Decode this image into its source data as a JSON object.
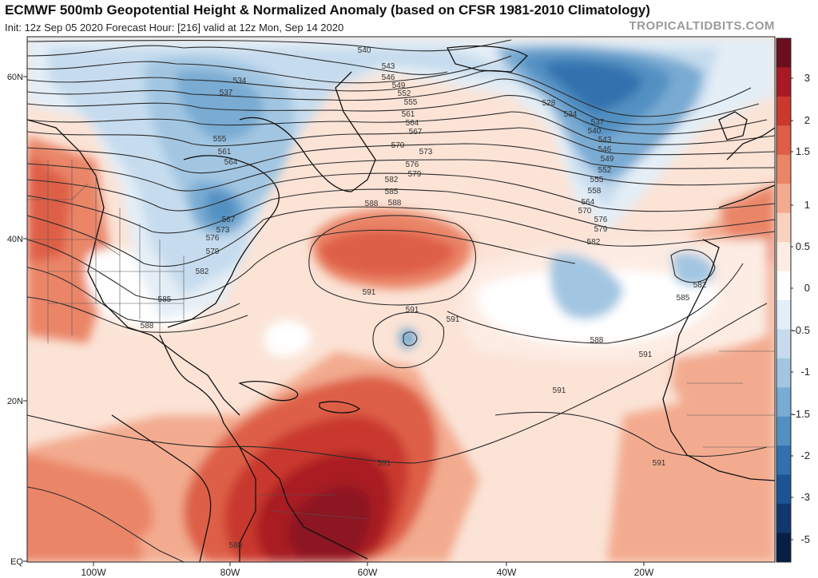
{
  "header": {
    "title": "ECMWF 500mb Geopotential Height & Normalized Anomaly (based on CFSR 1981-2010 Climatology)",
    "subtitle": "Init: 12z Sep 05 2020   Forecast Hour: [216]   valid at 12z Mon, Sep 14 2020",
    "watermark": "TROPICALTIDBITS.COM"
  },
  "map": {
    "lat_labels": [
      "60N",
      "40N",
      "20N",
      "EQ"
    ],
    "lon_labels": [
      "100W",
      "80W",
      "60W",
      "40W",
      "20W"
    ],
    "colorbar_labels": [
      "3",
      "2",
      "1.5",
      "1",
      "0.5",
      "0",
      "-0.5",
      "-1",
      "-1.5",
      "-2",
      "-3",
      "-5"
    ],
    "colorbar_colors": [
      "#6b0f1f",
      "#a81a23",
      "#c9392e",
      "#de5e47",
      "#ea8567",
      "#f3ab8f",
      "#f9d2bf",
      "#fdece3",
      "#ffffff",
      "#e4eef6",
      "#c6dcee",
      "#a2c6e2",
      "#79abd3",
      "#5290c2",
      "#3171ae",
      "#1c5494",
      "#10386e",
      "#081f45"
    ],
    "contour_labels": [
      "540",
      "543",
      "546",
      "549",
      "552",
      "555",
      "561",
      "564",
      "567",
      "570",
      "573",
      "576",
      "579",
      "582",
      "585",
      "588",
      "534",
      "537",
      "555",
      "561",
      "564",
      "567",
      "573",
      "576",
      "579",
      "582",
      "585",
      "588",
      "528",
      "534",
      "537",
      "540",
      "543",
      "546",
      "549",
      "552",
      "555",
      "558",
      "564",
      "570",
      "576",
      "579",
      "582",
      "582",
      "585",
      "588",
      "591",
      "591",
      "591",
      "591",
      "591",
      "588",
      "591",
      "591",
      "588"
    ]
  }
}
